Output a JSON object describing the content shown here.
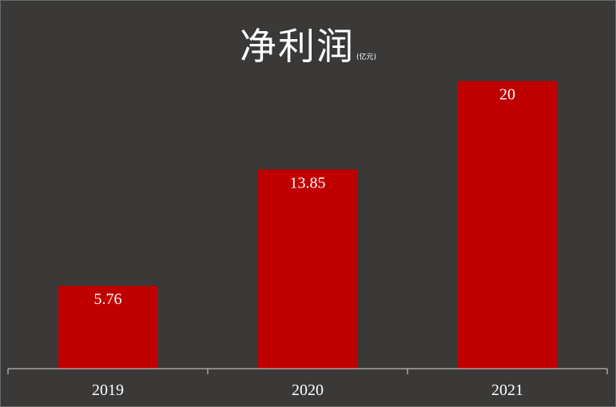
{
  "chart_data": {
    "type": "bar",
    "title": "净利润",
    "unit": "(亿元)",
    "categories": [
      "2019",
      "2020",
      "2021"
    ],
    "values": [
      5.76,
      13.85,
      20
    ],
    "data_labels": [
      "5.76",
      "13.85",
      "20"
    ],
    "bar_color": "#c00000",
    "background_color": "#3a3938",
    "grid": false,
    "legend": "none",
    "ylim": [
      0,
      22
    ]
  }
}
